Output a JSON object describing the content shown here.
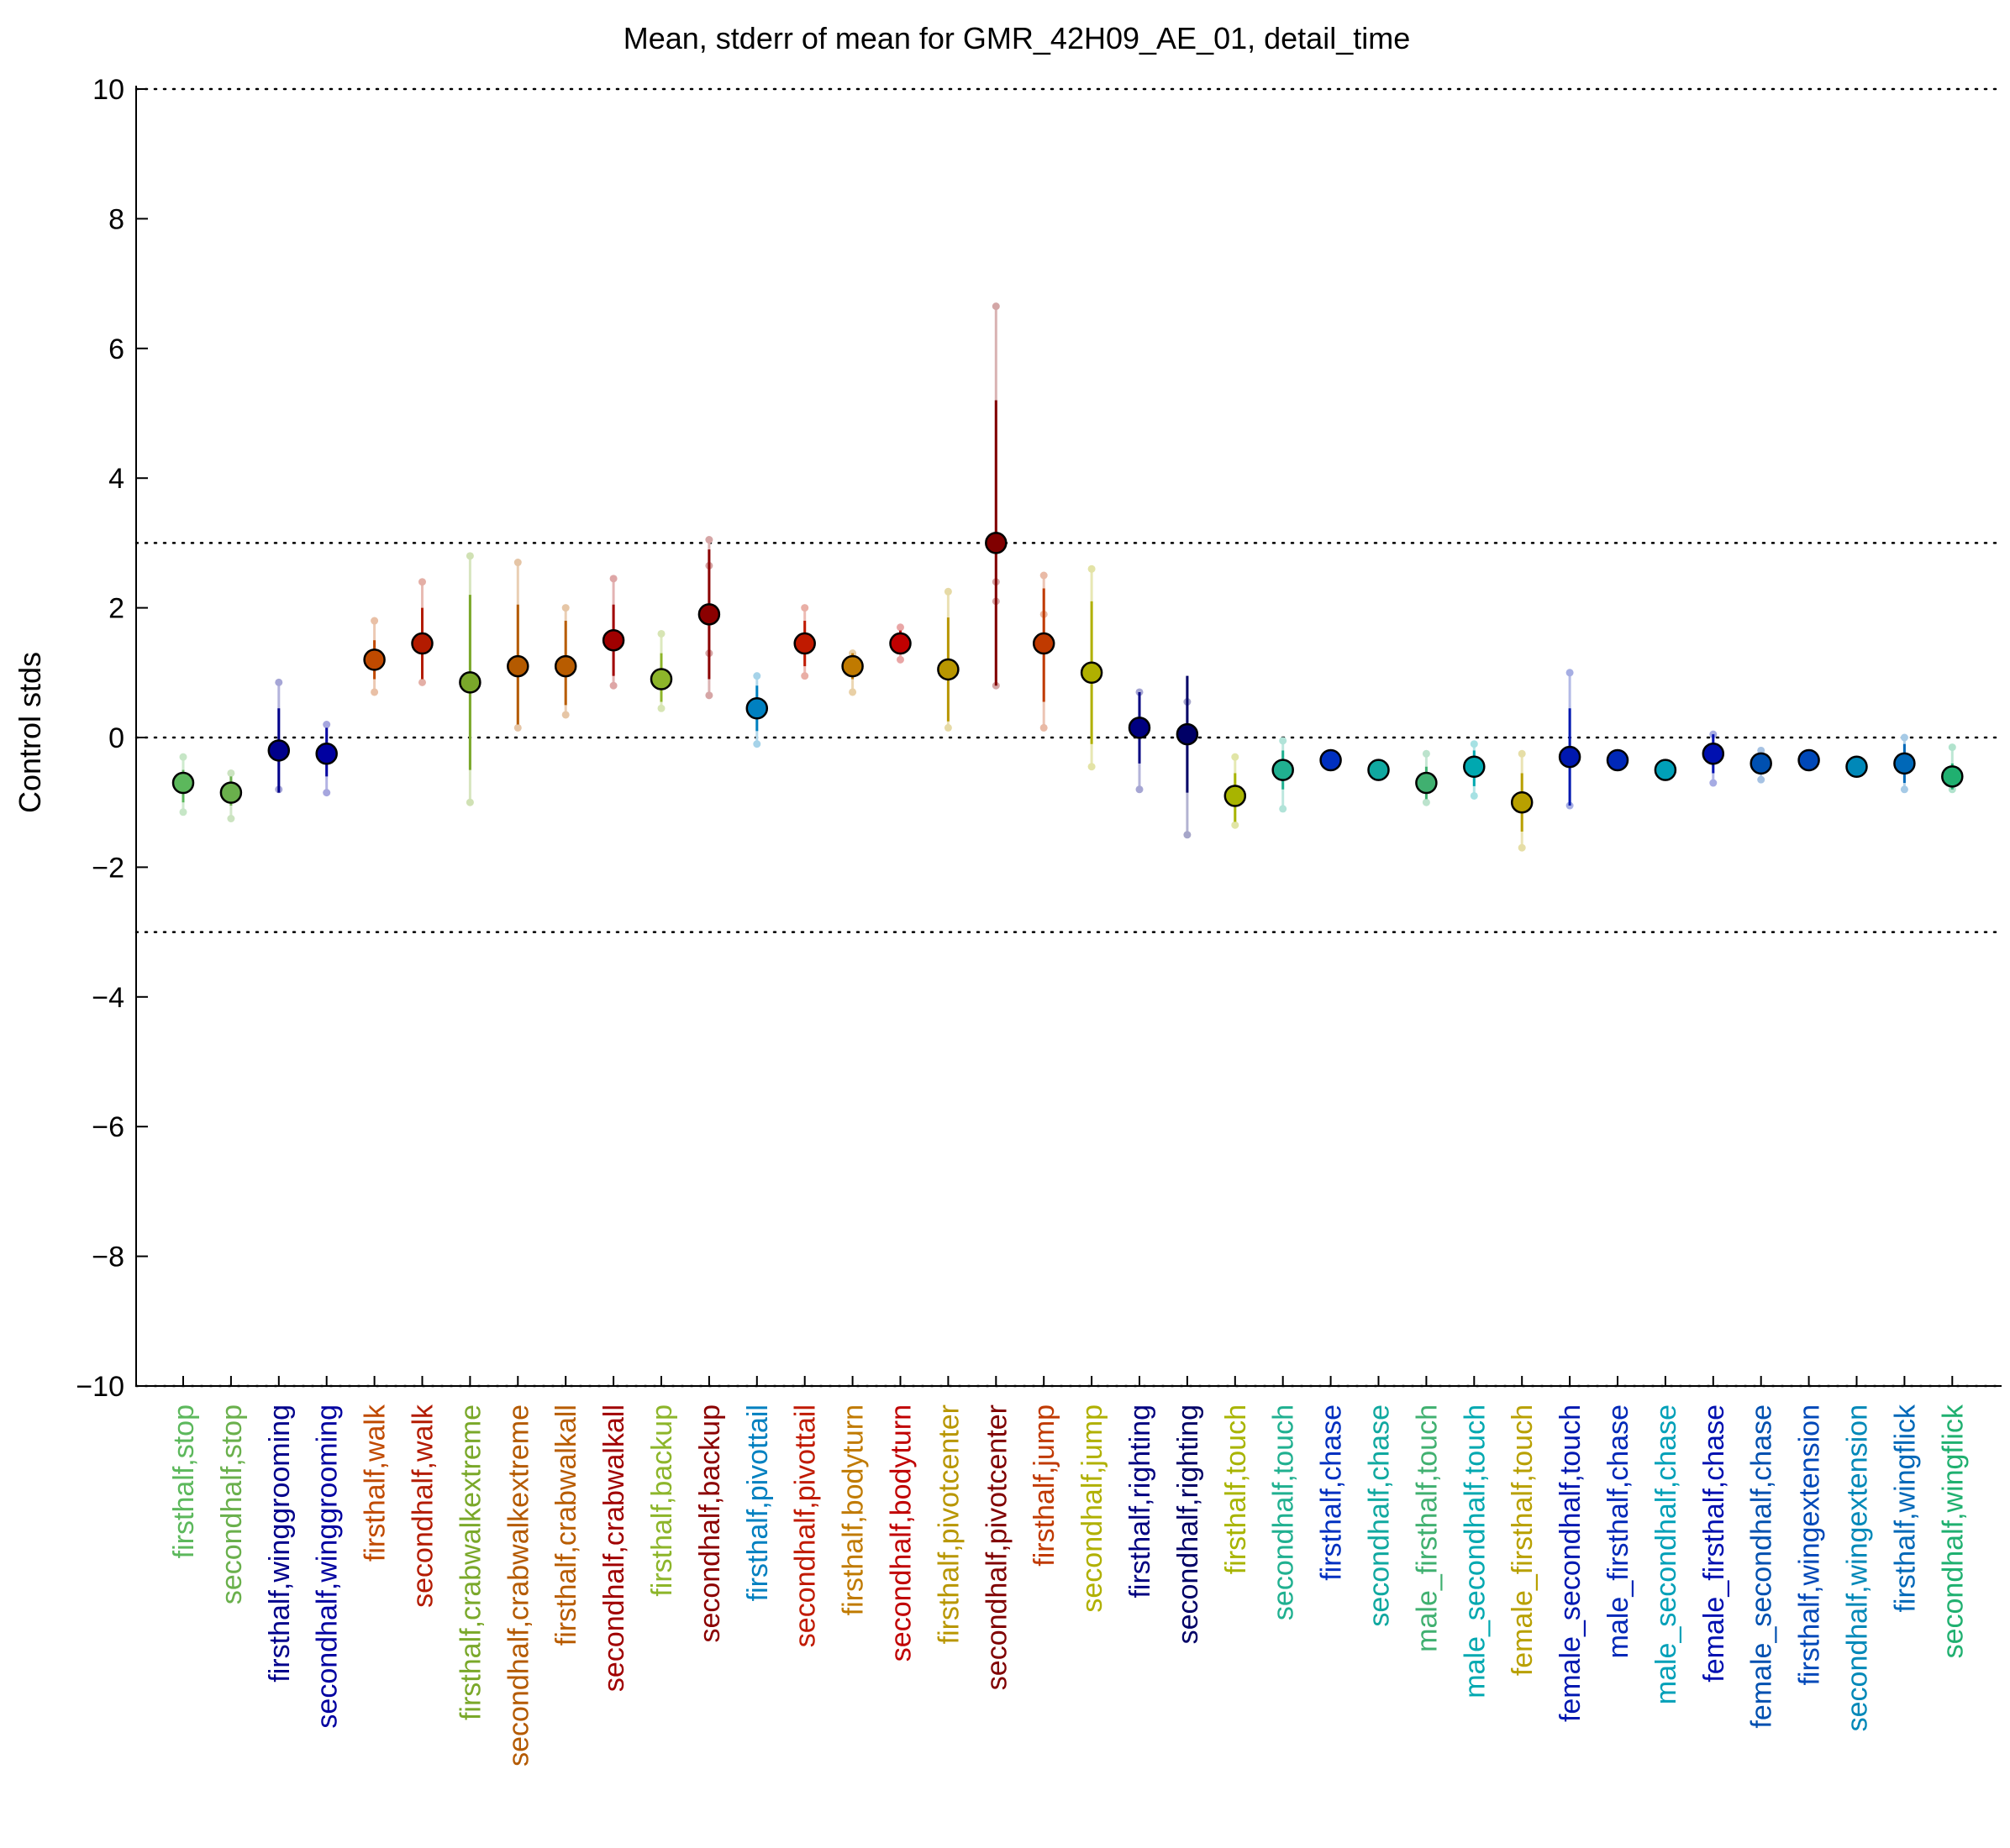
{
  "chart_data": {
    "type": "scatter",
    "title": "Mean, stderr of mean for GMR_42H09_AE_01, detail_time",
    "xlabel": "",
    "ylabel": "Control stds",
    "ylim": [
      -10,
      10
    ],
    "yticks": [
      10,
      8,
      6,
      4,
      2,
      0,
      -2,
      -4,
      -6,
      -8,
      -10
    ],
    "yticklabels": [
      "10",
      "8",
      "6",
      "4",
      "2",
      "0",
      "−2",
      "−4",
      "−6",
      "−8",
      "−10"
    ],
    "reference_lines": [
      10,
      3,
      0,
      -3,
      -10
    ],
    "grid": false,
    "legend": "none",
    "points": [
      {
        "category": "firsthalf,stop",
        "color": "#5cb85c",
        "mean": -0.7,
        "stderr_low": -1.0,
        "stderr_high": -0.5,
        "extra": [
          -1.15,
          -0.3
        ]
      },
      {
        "category": "secondhalf,stop",
        "color": "#6ab04c",
        "mean": -0.85,
        "stderr_low": -1.05,
        "stderr_high": -0.6,
        "extra": [
          -1.25,
          -0.55
        ]
      },
      {
        "category": "firsthalf,winggrooming",
        "color": "#00008b",
        "mean": -0.2,
        "stderr_low": -0.85,
        "stderr_high": 0.45,
        "extra": [
          -0.8,
          0.85
        ]
      },
      {
        "category": "secondhalf,winggrooming",
        "color": "#0000a0",
        "mean": -0.25,
        "stderr_low": -0.6,
        "stderr_high": 0.15,
        "extra": [
          -0.85,
          0.2
        ]
      },
      {
        "category": "firsthalf,walk",
        "color": "#c04a00",
        "mean": 1.2,
        "stderr_low": 0.9,
        "stderr_high": 1.5,
        "extra": [
          0.7,
          1.8
        ]
      },
      {
        "category": "secondhalf,walk",
        "color": "#b31b00",
        "mean": 1.45,
        "stderr_low": 0.9,
        "stderr_high": 2.0,
        "extra": [
          0.85,
          2.4
        ]
      },
      {
        "category": "firsthalf,crabwalkextreme",
        "color": "#7aa82a",
        "mean": 0.85,
        "stderr_low": -0.5,
        "stderr_high": 2.2,
        "extra": [
          -1.0,
          2.8
        ]
      },
      {
        "category": "secondhalf,crabwalkextreme",
        "color": "#b45a00",
        "mean": 1.1,
        "stderr_low": 0.2,
        "stderr_high": 2.05,
        "extra": [
          0.15,
          2.7
        ]
      },
      {
        "category": "firsthalf,crabwalkall",
        "color": "#b85c00",
        "mean": 1.1,
        "stderr_low": 0.5,
        "stderr_high": 1.8,
        "extra": [
          0.35,
          2.0
        ]
      },
      {
        "category": "secondhalf,crabwalkall",
        "color": "#a00000",
        "mean": 1.5,
        "stderr_low": 0.95,
        "stderr_high": 2.05,
        "extra": [
          0.8,
          2.45
        ]
      },
      {
        "category": "firsthalf,backup",
        "color": "#8db52a",
        "mean": 0.9,
        "stderr_low": 0.55,
        "stderr_high": 1.3,
        "extra": [
          0.45,
          1.6
        ]
      },
      {
        "category": "secondhalf,backup",
        "color": "#8b0000",
        "mean": 1.9,
        "stderr_low": 0.9,
        "stderr_high": 2.9,
        "extra": [
          0.65,
          3.05,
          1.3,
          2.65
        ]
      },
      {
        "category": "firsthalf,pivottail",
        "color": "#0080c0",
        "mean": 0.45,
        "stderr_low": 0.1,
        "stderr_high": 0.8,
        "extra": [
          -0.1,
          0.95
        ]
      },
      {
        "category": "secondhalf,pivottail",
        "color": "#c01a00",
        "mean": 1.45,
        "stderr_low": 1.1,
        "stderr_high": 1.8,
        "extra": [
          0.95,
          2.0
        ]
      },
      {
        "category": "firsthalf,bodyturn",
        "color": "#c07a00",
        "mean": 1.1,
        "stderr_low": 0.9,
        "stderr_high": 1.3,
        "extra": [
          0.7,
          1.3
        ]
      },
      {
        "category": "secondhalf,bodyturn",
        "color": "#c00000",
        "mean": 1.45,
        "stderr_low": 1.3,
        "stderr_high": 1.65,
        "extra": [
          1.2,
          1.7
        ]
      },
      {
        "category": "firsthalf,pivotcenter",
        "color": "#b89600",
        "mean": 1.05,
        "stderr_low": 0.25,
        "stderr_high": 1.85,
        "extra": [
          0.15,
          2.25
        ]
      },
      {
        "category": "secondhalf,pivotcenter",
        "color": "#800000",
        "mean": 3.0,
        "stderr_low": 0.8,
        "stderr_high": 5.2,
        "extra": [
          0.8,
          6.65,
          2.1,
          2.4
        ]
      },
      {
        "category": "firsthalf,jump",
        "color": "#c03a00",
        "mean": 1.45,
        "stderr_low": 0.55,
        "stderr_high": 2.3,
        "extra": [
          0.15,
          2.5,
          1.9
        ]
      },
      {
        "category": "secondhalf,jump",
        "color": "#b0b000",
        "mean": 1.0,
        "stderr_low": -0.1,
        "stderr_high": 2.1,
        "extra": [
          -0.45,
          2.6
        ]
      },
      {
        "category": "firsthalf,righting",
        "color": "#000080",
        "mean": 0.15,
        "stderr_low": -0.4,
        "stderr_high": 0.7,
        "extra": [
          -0.8,
          0.7
        ]
      },
      {
        "category": "secondhalf,righting",
        "color": "#000066",
        "mean": 0.05,
        "stderr_low": -0.85,
        "stderr_high": 0.95,
        "extra": [
          -1.5,
          0.55
        ]
      },
      {
        "category": "firsthalf,touch",
        "color": "#a8b400",
        "mean": -0.9,
        "stderr_low": -1.3,
        "stderr_high": -0.55,
        "extra": [
          -1.35,
          -0.3
        ]
      },
      {
        "category": "secondhalf,touch",
        "color": "#20b090",
        "mean": -0.5,
        "stderr_low": -0.8,
        "stderr_high": -0.2,
        "extra": [
          -1.1,
          -0.05
        ]
      },
      {
        "category": "firsthalf,chase",
        "color": "#0030c0",
        "mean": -0.35,
        "stderr_low": -0.42,
        "stderr_high": -0.28,
        "extra": []
      },
      {
        "category": "secondhalf,chase",
        "color": "#10a8a0",
        "mean": -0.5,
        "stderr_low": -0.55,
        "stderr_high": -0.45,
        "extra": []
      },
      {
        "category": "male_firsthalf,touch",
        "color": "#40b070",
        "mean": -0.7,
        "stderr_low": -0.95,
        "stderr_high": -0.45,
        "extra": [
          -1.0,
          -0.25
        ]
      },
      {
        "category": "male_secondhalf,touch",
        "color": "#00a8b0",
        "mean": -0.45,
        "stderr_low": -0.75,
        "stderr_high": -0.2,
        "extra": [
          -0.9,
          -0.1
        ]
      },
      {
        "category": "female_firsthalf,touch",
        "color": "#b8a000",
        "mean": -1.0,
        "stderr_low": -1.45,
        "stderr_high": -0.55,
        "extra": [
          -1.7,
          -0.25
        ]
      },
      {
        "category": "female_secondhalf,touch",
        "color": "#0018b0",
        "mean": -0.3,
        "stderr_low": -1.05,
        "stderr_high": 0.45,
        "extra": [
          -1.05,
          1.0
        ]
      },
      {
        "category": "male_firsthalf,chase",
        "color": "#0028b8",
        "mean": -0.35,
        "stderr_low": -0.4,
        "stderr_high": -0.3,
        "extra": []
      },
      {
        "category": "male_secondhalf,chase",
        "color": "#00a0b8",
        "mean": -0.5,
        "stderr_low": -0.55,
        "stderr_high": -0.45,
        "extra": []
      },
      {
        "category": "female_firsthalf,chase",
        "color": "#0010b0",
        "mean": -0.25,
        "stderr_low": -0.55,
        "stderr_high": 0.05,
        "extra": [
          -0.7,
          0.05
        ]
      },
      {
        "category": "female_secondhalf,chase",
        "color": "#0050b0",
        "mean": -0.4,
        "stderr_low": -0.55,
        "stderr_high": -0.25,
        "extra": [
          -0.65,
          -0.2
        ]
      },
      {
        "category": "firsthalf,wingextension",
        "color": "#0048b8",
        "mean": -0.35,
        "stderr_low": -0.4,
        "stderr_high": -0.3,
        "extra": []
      },
      {
        "category": "secondhalf,wingextension",
        "color": "#0088b8",
        "mean": -0.45,
        "stderr_low": -0.5,
        "stderr_high": -0.4,
        "extra": []
      },
      {
        "category": "firsthalf,wingflick",
        "color": "#0068b8",
        "mean": -0.4,
        "stderr_low": -0.7,
        "stderr_high": -0.1,
        "extra": [
          -0.8,
          0.0
        ]
      },
      {
        "category": "secondhalf,wingflick",
        "color": "#20b070",
        "mean": -0.6,
        "stderr_low": -0.8,
        "stderr_high": -0.4,
        "extra": [
          -0.8,
          -0.15
        ]
      }
    ]
  }
}
